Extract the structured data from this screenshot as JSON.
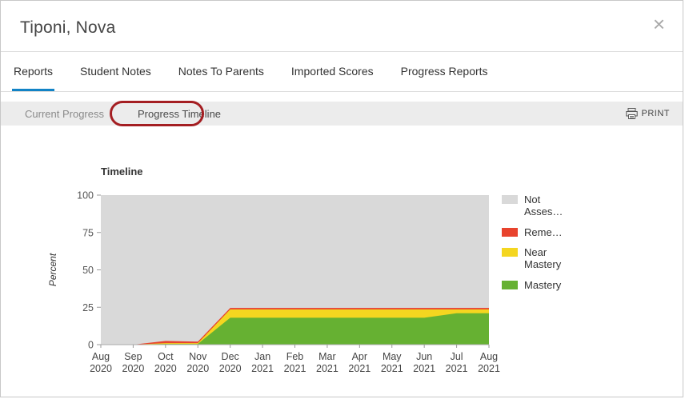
{
  "header": {
    "title": "Tiponi, Nova",
    "close_glyph": "×"
  },
  "tabs": [
    {
      "label": "Reports",
      "active": true
    },
    {
      "label": "Student Notes",
      "active": false
    },
    {
      "label": "Notes To Parents",
      "active": false
    },
    {
      "label": "Imported Scores",
      "active": false
    },
    {
      "label": "Progress Reports",
      "active": false
    }
  ],
  "subtabs": {
    "current_progress": "Current Progress",
    "progress_timeline": "Progress Timeline"
  },
  "toolbar": {
    "print_label": "PRINT"
  },
  "colors": {
    "accent_blue": "#1283c6",
    "annotation_red": "#a41e22",
    "not_assessed_gray": "#d9d9d9",
    "remediation_red": "#e8432d",
    "near_mastery_yellow": "#f4d620",
    "mastery_green": "#66b132"
  },
  "chart_data": {
    "type": "area",
    "title": "Timeline",
    "ylabel": "Percent",
    "ylim": [
      0,
      100
    ],
    "yticks": [
      0,
      25,
      50,
      75,
      100
    ],
    "background_color": "#d9d9d9",
    "legend_position": "right",
    "categories": [
      {
        "month": "Aug",
        "year": "2020"
      },
      {
        "month": "Sep",
        "year": "2020"
      },
      {
        "month": "Oct",
        "year": "2020"
      },
      {
        "month": "Nov",
        "year": "2020"
      },
      {
        "month": "Dec",
        "year": "2020"
      },
      {
        "month": "Jan",
        "year": "2021"
      },
      {
        "month": "Feb",
        "year": "2021"
      },
      {
        "month": "Mar",
        "year": "2021"
      },
      {
        "month": "Apr",
        "year": "2021"
      },
      {
        "month": "May",
        "year": "2021"
      },
      {
        "month": "Jun",
        "year": "2021"
      },
      {
        "month": "Jul",
        "year": "2021"
      },
      {
        "month": "Aug",
        "year": "2021"
      }
    ],
    "series": [
      {
        "name": "Mastery",
        "color": "#66b132",
        "values": [
          0,
          0,
          0.5,
          0.5,
          18,
          18,
          18,
          18,
          18,
          18,
          18,
          21,
          21
        ]
      },
      {
        "name": "Near Mastery",
        "color": "#f4d620",
        "values": [
          0,
          0,
          0.5,
          0.5,
          5.5,
          5.5,
          5.5,
          5.5,
          5.5,
          5.5,
          5.5,
          2.5,
          2.5
        ]
      },
      {
        "name": "Remediation",
        "color": "#e8432d",
        "values": [
          0,
          0,
          1.5,
          1,
          1,
          1,
          1,
          1,
          1,
          1,
          1,
          1,
          1
        ]
      }
    ],
    "legend": [
      {
        "label": "Not Asses…",
        "color": "#d9d9d9"
      },
      {
        "label": "Reme…",
        "color": "#e8432d"
      },
      {
        "label": "Near Mastery",
        "color": "#f4d620"
      },
      {
        "label": "Mastery",
        "color": "#66b132"
      }
    ]
  }
}
